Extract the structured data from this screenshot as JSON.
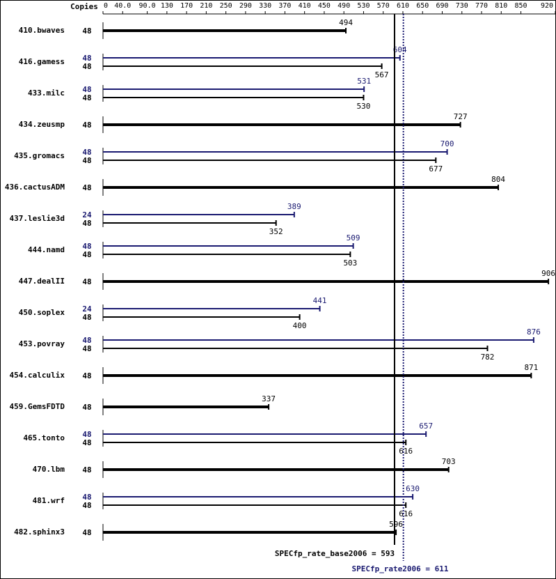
{
  "chart_data": {
    "type": "spec-bar",
    "copies_header": "Copies",
    "categories": [
      "410.bwaves",
      "416.gamess",
      "433.milc",
      "434.zeusmp",
      "435.gromacs",
      "436.cactusADM",
      "437.leslie3d",
      "444.namd",
      "447.dealII",
      "450.soplex",
      "453.povray",
      "454.calculix",
      "459.GemsFDTD",
      "465.tonto",
      "470.lbm",
      "481.wrf",
      "482.sphinx3"
    ],
    "base_copies": [
      48,
      48,
      48,
      48,
      48,
      48,
      48,
      48,
      48,
      48,
      48,
      48,
      48,
      48,
      48,
      48,
      48
    ],
    "base_values": [
      494,
      567,
      530,
      727,
      677,
      804,
      352,
      503,
      906,
      400,
      782,
      871,
      337,
      616,
      703,
      616,
      596
    ],
    "peak_copies": [
      null,
      48,
      48,
      null,
      48,
      null,
      24,
      48,
      null,
      24,
      48,
      null,
      null,
      48,
      null,
      48,
      null
    ],
    "peak_values": [
      null,
      604,
      531,
      null,
      700,
      null,
      389,
      509,
      null,
      441,
      876,
      null,
      null,
      657,
      null,
      630,
      null
    ],
    "base_color": "#000000",
    "peak_color": "#191970",
    "xlim": [
      0,
      920
    ],
    "xticks": [
      0,
      {
        "value": 40,
        "label": "40.0"
      },
      {
        "value": 90,
        "label": "90.0"
      },
      130,
      170,
      210,
      250,
      290,
      330,
      370,
      410,
      450,
      490,
      530,
      570,
      610,
      650,
      690,
      730,
      770,
      810,
      850,
      920
    ],
    "base_metric": {
      "value": 593,
      "label": "SPECfp_rate_base2006 = 593"
    },
    "peak_metric": {
      "value": 611,
      "label": "SPECfp_rate2006 = 611"
    }
  }
}
